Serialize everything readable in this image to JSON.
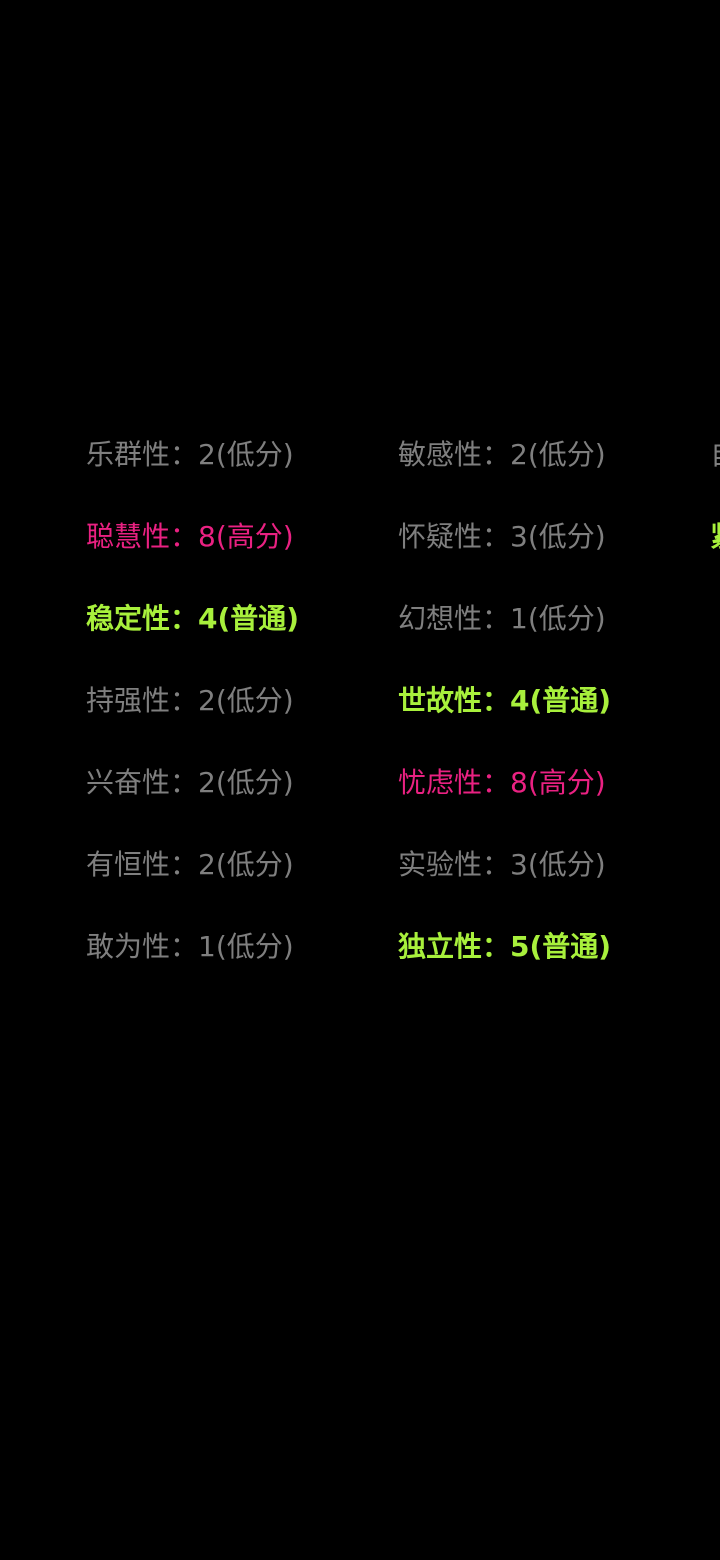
{
  "colors": {
    "low": "#7f7f7f",
    "high": "#ea2182",
    "normal": "#a8f03c"
  },
  "columns": [
    [
      {
        "text": "乐群性：2(低分)",
        "level": "low"
      },
      {
        "text": "聪慧性：8(高分)",
        "level": "high"
      },
      {
        "text": "稳定性：4(普通)",
        "level": "normal"
      },
      {
        "text": "持强性：2(低分)",
        "level": "low"
      },
      {
        "text": "兴奋性：2(低分)",
        "level": "low"
      },
      {
        "text": "有恒性：2(低分)",
        "level": "low"
      },
      {
        "text": "敢为性：1(低分)",
        "level": "low"
      }
    ],
    [
      {
        "text": "敏感性：2(低分)",
        "level": "low"
      },
      {
        "text": "怀疑性：3(低分)",
        "level": "low"
      },
      {
        "text": "幻想性：1(低分)",
        "level": "low"
      },
      {
        "text": "世故性：4(普通)",
        "level": "normal"
      },
      {
        "text": "忧虑性：8(高分)",
        "level": "high"
      },
      {
        "text": "实验性：3(低分)",
        "level": "low"
      },
      {
        "text": "独立性：5(普通)",
        "level": "normal"
      }
    ],
    [
      {
        "text": "自",
        "level": "low"
      },
      {
        "text": "紧",
        "level": "normal"
      }
    ]
  ]
}
